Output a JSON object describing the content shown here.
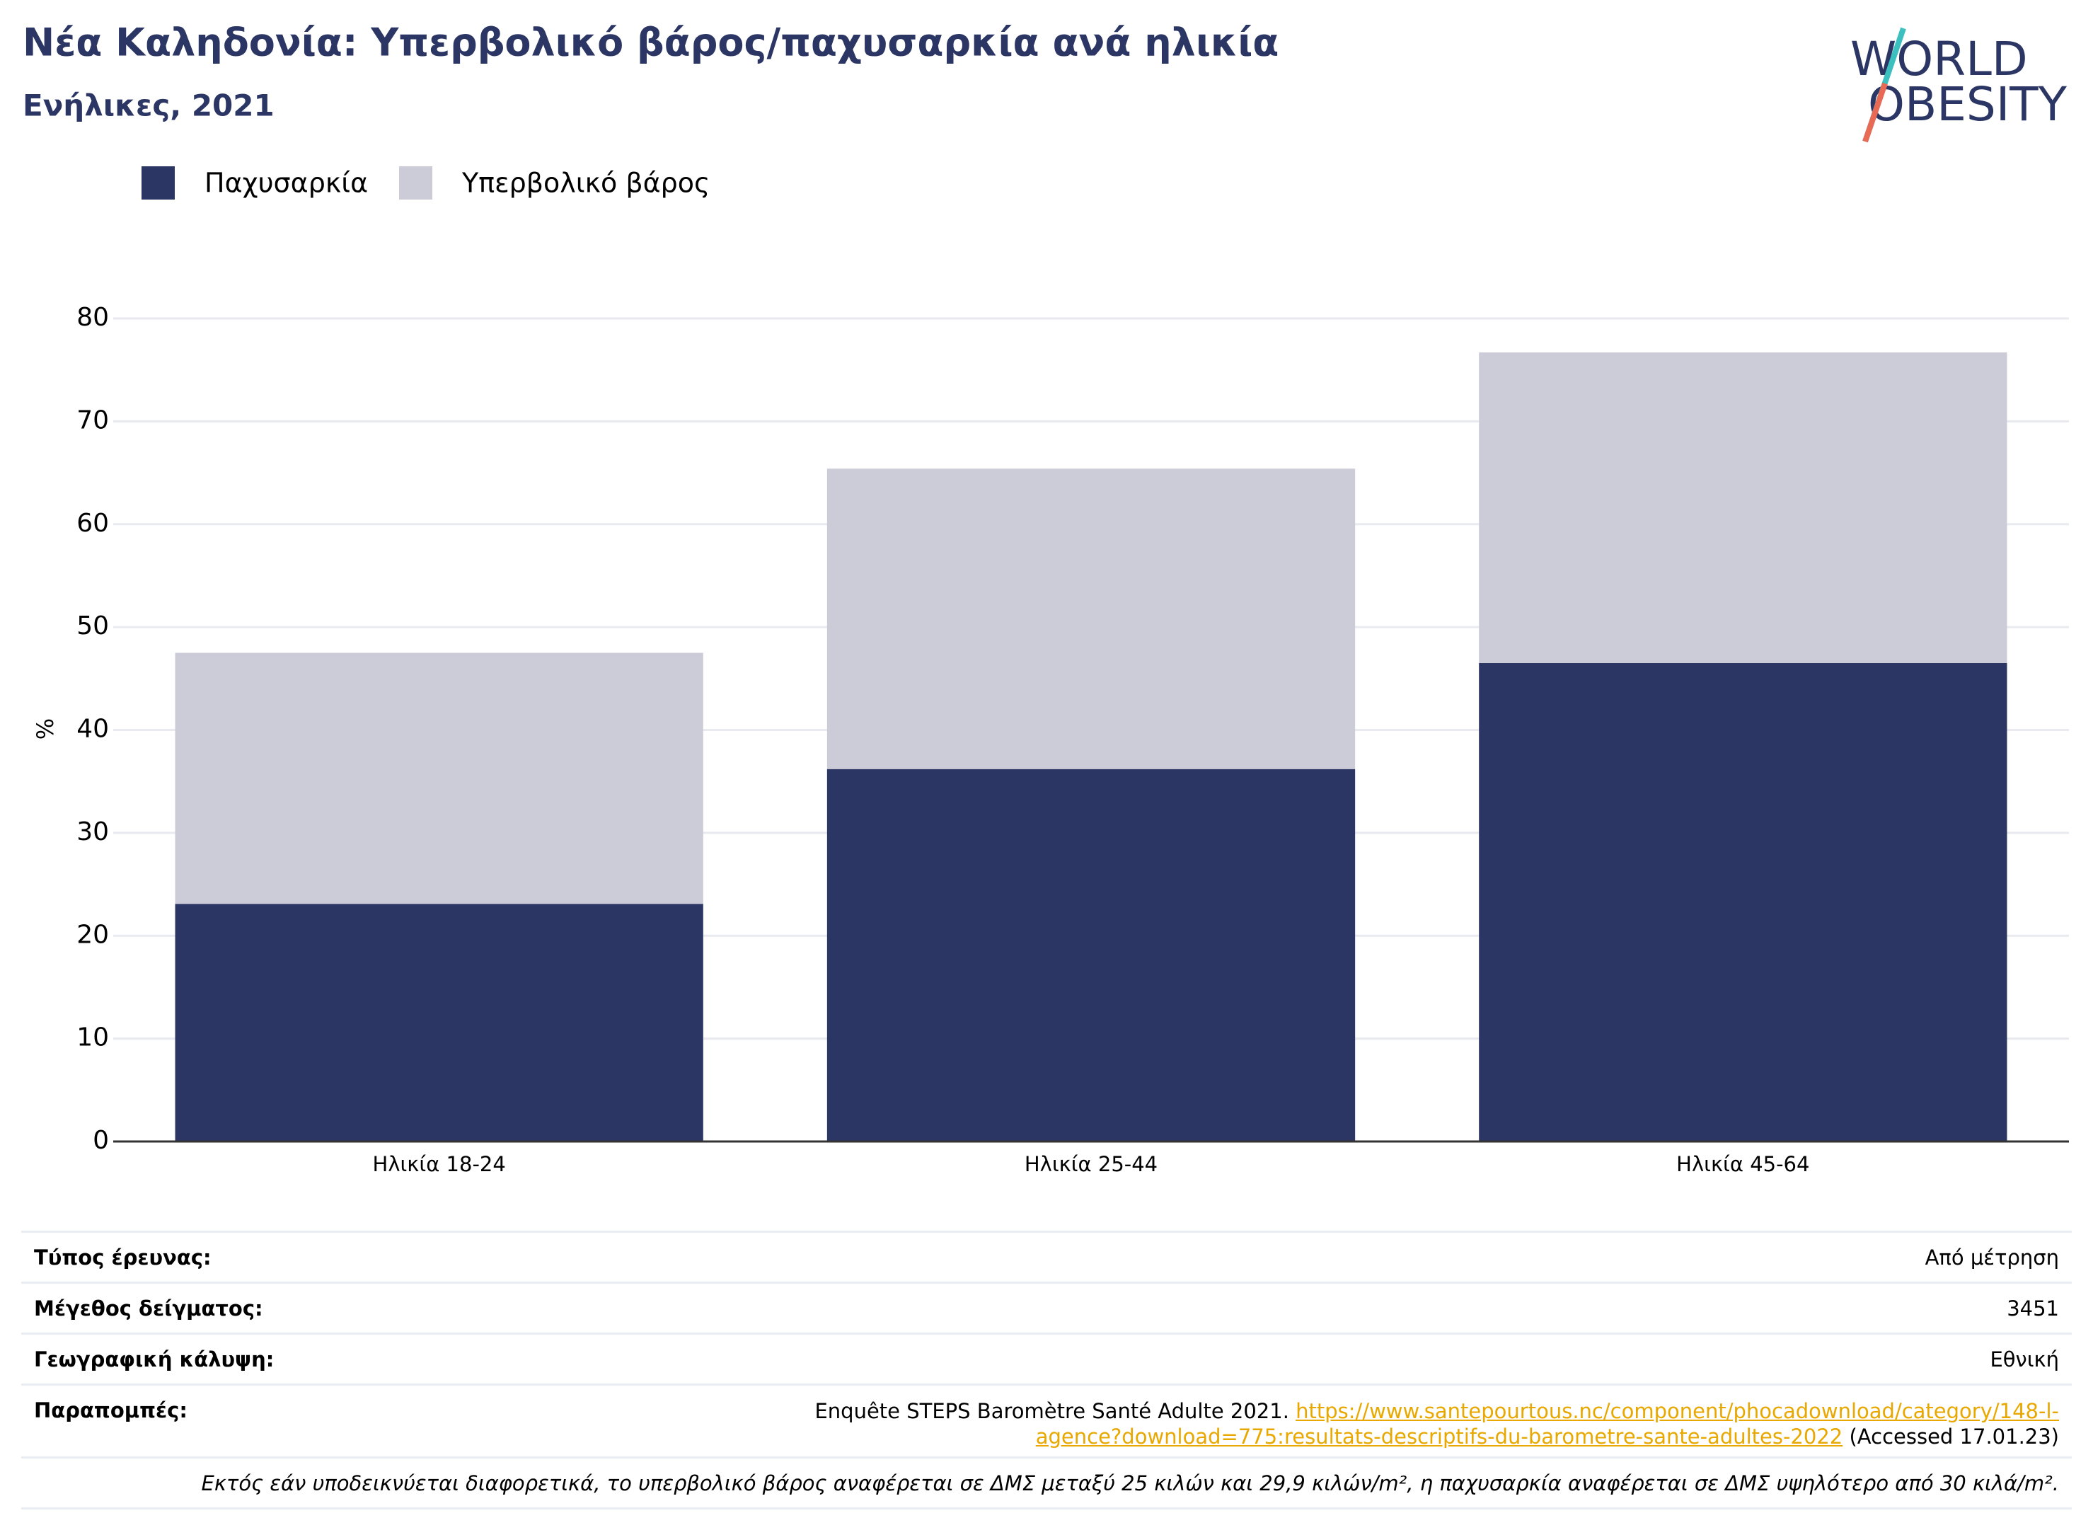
{
  "header": {
    "title": "Νέα Καληδονία: Υπερβολικό βάρος/παχυσαρκία ανά ηλικία",
    "subtitle": "Ενήλικες, 2021",
    "logo_top": "WORLD",
    "logo_bottom": "OBESITY"
  },
  "chart_data": {
    "type": "stacked_bar",
    "y_label": "%",
    "categories": [
      "Ηλικία 18-24",
      "Ηλικία 25-44",
      "Ηλικία 45-64"
    ],
    "series": [
      {
        "name": "Παχυσαρκία",
        "color": "#2b3664",
        "values": [
          23.1,
          36.2,
          46.5
        ]
      },
      {
        "name": "Υπερβολικό βάρος",
        "color": "#cbccd8",
        "values": [
          24.4,
          29.2,
          30.2
        ]
      }
    ],
    "ylim": [
      0,
      80
    ],
    "yticks": [
      0,
      10,
      20,
      30,
      40,
      50,
      60,
      70,
      80
    ],
    "grid": true
  },
  "table": {
    "rows": [
      [
        "Τύπος έρευνας:",
        "Από μέτρηση"
      ],
      [
        "Μέγεθος δείγματος:",
        "3451"
      ],
      [
        "Γεωγραφική κάλυψη:",
        "Εθνική"
      ]
    ],
    "references_label": "Παραπομπές:",
    "references": {
      "text": "Enquête STEPS Baromètre Santé Adulte 2021.",
      "url": "https://www.santepourtous.nc/component/phocadownload/category/148-l-agence?download=775:resultats-descriptifs-du-barometre-sante-adultes-2022",
      "accessed": "(Accessed 17.01.23)"
    },
    "footnote": "Εκτός εάν υποδεικνύεται διαφορετικά, το υπερβολικό βάρος αναφέρεται σε ΔΜΣ μεταξύ 25 κιλών και 29,9 κιλών/m², η παχυσαρκία αναφέρεται σε ΔΜΣ υψηλότερο από 30 κιλά/m²."
  }
}
